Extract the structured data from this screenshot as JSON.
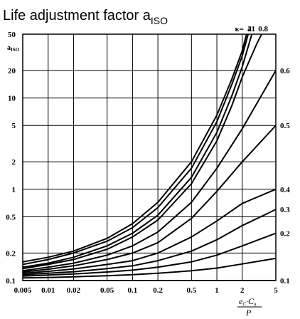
{
  "title": {
    "main": "Life adjustment factor a",
    "sub": "ISO"
  },
  "colors": {
    "line": "#000000",
    "background": "#ffffff"
  },
  "chart_data": {
    "type": "line",
    "x_scale": "log",
    "y_scale": "log",
    "xlim": [
      0.005,
      5
    ],
    "ylim": [
      0.1,
      50
    ],
    "grid": true,
    "x_ticks": [
      0.005,
      0.01,
      0.02,
      0.05,
      0.1,
      0.2,
      0.5,
      1,
      2,
      5
    ],
    "x_tick_labels": [
      "0.005",
      "0.01",
      "0.02",
      "0.05",
      "0.1",
      "0.2",
      "0.5",
      "1",
      "2",
      "5"
    ],
    "y_ticks": [
      0.1,
      0.2,
      0.5,
      1,
      2,
      5,
      10,
      20,
      50
    ],
    "y_tick_labels": [
      "0.1",
      "0.2",
      "0.5",
      "1",
      "2",
      "5",
      "10",
      "20",
      "50"
    ],
    "ylabel": {
      "main": "a",
      "sub": "ISO"
    },
    "xlabel": {
      "numerator": "e",
      "numerator_sub": "C",
      "numerator_mid": "·C",
      "numerator_mid_sub": "u",
      "denominator": "P"
    },
    "kappa_prefix": "κ=",
    "series": [
      {
        "name": "4",
        "label_pos": "top",
        "x": [
          0.005,
          0.01,
          0.02,
          0.05,
          0.1,
          0.2,
          0.5,
          1,
          1.5,
          2,
          2.25
        ],
        "y": [
          0.16,
          0.18,
          0.21,
          0.29,
          0.42,
          0.72,
          2.0,
          6.5,
          16,
          33,
          50
        ]
      },
      {
        "name": "2",
        "label_pos": "top",
        "x": [
          0.005,
          0.01,
          0.02,
          0.05,
          0.1,
          0.2,
          0.5,
          1,
          1.5,
          2,
          2.35
        ],
        "y": [
          0.15,
          0.17,
          0.2,
          0.27,
          0.38,
          0.63,
          1.7,
          5.5,
          14,
          29,
          50
        ]
      },
      {
        "name": "1",
        "label_pos": "top",
        "x": [
          0.005,
          0.01,
          0.02,
          0.05,
          0.1,
          0.2,
          0.5,
          1,
          1.5,
          2,
          2.6
        ],
        "y": [
          0.14,
          0.155,
          0.18,
          0.24,
          0.33,
          0.52,
          1.35,
          4.2,
          10.5,
          22,
          50
        ]
      },
      {
        "name": "0.8",
        "label_pos": "top",
        "x": [
          0.005,
          0.01,
          0.02,
          0.05,
          0.1,
          0.2,
          0.5,
          1,
          1.5,
          2,
          3,
          3.4
        ],
        "y": [
          0.135,
          0.15,
          0.17,
          0.22,
          0.3,
          0.46,
          1.15,
          3.4,
          8.2,
          17,
          40,
          50
        ]
      },
      {
        "name": "0.6",
        "label_pos": "right",
        "x": [
          0.005,
          0.01,
          0.02,
          0.05,
          0.1,
          0.2,
          0.5,
          1,
          2,
          5
        ],
        "y": [
          0.128,
          0.14,
          0.155,
          0.19,
          0.24,
          0.34,
          0.72,
          1.7,
          4.6,
          20
        ]
      },
      {
        "name": "0.5",
        "label_pos": "right",
        "x": [
          0.005,
          0.01,
          0.02,
          0.05,
          0.1,
          0.2,
          0.5,
          1,
          2,
          5
        ],
        "y": [
          0.124,
          0.133,
          0.145,
          0.17,
          0.2,
          0.26,
          0.48,
          0.95,
          2.0,
          5.0
        ]
      },
      {
        "name": "0.4",
        "label_pos": "right",
        "x": [
          0.005,
          0.01,
          0.02,
          0.05,
          0.1,
          0.2,
          0.5,
          1,
          2,
          5
        ],
        "y": [
          0.12,
          0.126,
          0.134,
          0.15,
          0.165,
          0.2,
          0.3,
          0.45,
          0.7,
          1.0
        ]
      },
      {
        "name": "0.3",
        "label_pos": "right",
        "x": [
          0.005,
          0.01,
          0.02,
          0.05,
          0.1,
          0.2,
          0.5,
          1,
          2,
          5
        ],
        "y": [
          0.116,
          0.12,
          0.125,
          0.135,
          0.145,
          0.165,
          0.21,
          0.28,
          0.4,
          0.6
        ]
      },
      {
        "name": "0.2",
        "label_pos": "right",
        "x": [
          0.005,
          0.01,
          0.02,
          0.05,
          0.1,
          0.2,
          0.5,
          1,
          2,
          5
        ],
        "y": [
          0.112,
          0.115,
          0.118,
          0.124,
          0.13,
          0.14,
          0.16,
          0.19,
          0.24,
          0.33
        ]
      },
      {
        "name": "",
        "label_pos": "none",
        "x": [
          0.005,
          0.01,
          0.02,
          0.05,
          0.1,
          0.2,
          0.5,
          1,
          2,
          5
        ],
        "y": [
          0.107,
          0.108,
          0.11,
          0.113,
          0.116,
          0.12,
          0.128,
          0.137,
          0.152,
          0.175
        ]
      },
      {
        "name": "0.1",
        "label_pos": "right",
        "x": [
          0.005,
          5
        ],
        "y": [
          0.1,
          0.1
        ]
      }
    ]
  }
}
